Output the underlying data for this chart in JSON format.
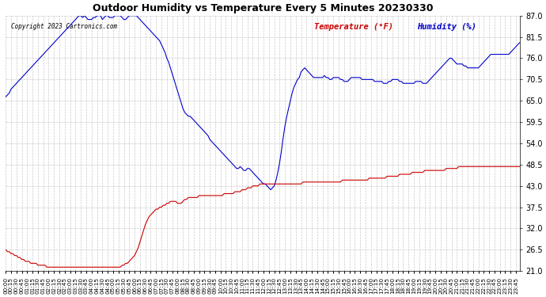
{
  "title": "Outdoor Humidity vs Temperature Every 5 Minutes 20230330",
  "copyright_text": "Copyright 2023 Cartronics.com",
  "legend_temp": "Temperature (°F)",
  "legend_hum": "Humidity (%)",
  "background_color": "#ffffff",
  "grid_color": "#bbbbbb",
  "humidity_color": "#0000cc",
  "temperature_color": "#cc0000",
  "ylim": [
    21.0,
    87.0
  ],
  "yticks": [
    21.0,
    26.5,
    32.0,
    37.5,
    43.0,
    48.5,
    54.0,
    59.5,
    65.0,
    70.5,
    76.0,
    81.5,
    87.0
  ],
  "humidity_data": [
    66.0,
    66.5,
    67.0,
    68.0,
    68.5,
    69.0,
    69.5,
    70.0,
    70.5,
    71.0,
    71.5,
    72.0,
    72.5,
    73.0,
    73.5,
    74.0,
    74.5,
    75.0,
    75.5,
    76.0,
    76.5,
    77.0,
    77.5,
    78.0,
    78.5,
    79.0,
    79.5,
    80.0,
    80.5,
    81.0,
    81.5,
    82.0,
    82.5,
    83.0,
    83.5,
    84.0,
    84.5,
    85.0,
    85.5,
    86.0,
    86.5,
    87.0,
    87.0,
    86.5,
    87.0,
    86.5,
    86.0,
    86.0,
    86.0,
    86.5,
    86.5,
    87.0,
    87.0,
    87.0,
    86.0,
    86.5,
    87.0,
    87.0,
    86.5,
    86.5,
    86.5,
    87.0,
    87.0,
    87.0,
    87.0,
    86.5,
    86.0,
    86.0,
    86.5,
    87.0,
    87.0,
    87.0,
    87.0,
    87.0,
    86.5,
    86.0,
    85.5,
    85.0,
    84.5,
    84.0,
    83.5,
    83.0,
    82.5,
    82.0,
    81.5,
    81.0,
    80.5,
    79.5,
    78.5,
    77.5,
    76.0,
    75.0,
    73.5,
    72.0,
    70.5,
    69.0,
    67.5,
    66.0,
    64.5,
    63.0,
    62.0,
    61.5,
    61.0,
    61.0,
    60.5,
    60.0,
    59.5,
    59.0,
    58.5,
    58.0,
    57.5,
    57.0,
    56.5,
    56.0,
    55.0,
    54.5,
    54.0,
    53.5,
    53.0,
    52.5,
    52.0,
    51.5,
    51.0,
    50.5,
    50.0,
    49.5,
    49.0,
    48.5,
    48.0,
    47.5,
    47.5,
    48.0,
    47.5,
    47.0,
    47.0,
    47.5,
    47.5,
    47.0,
    46.5,
    46.0,
    45.5,
    45.0,
    44.5,
    44.0,
    43.5,
    43.5,
    43.0,
    42.5,
    42.0,
    42.5,
    43.0,
    44.5,
    46.5,
    49.0,
    52.0,
    55.5,
    58.5,
    61.0,
    63.0,
    65.0,
    67.0,
    68.5,
    69.5,
    70.5,
    71.0,
    72.5,
    73.0,
    73.5,
    73.0,
    72.5,
    72.0,
    71.5,
    71.0,
    71.0,
    71.0,
    71.0,
    71.0,
    71.0,
    71.5,
    71.0,
    71.0,
    70.5,
    70.5,
    71.0,
    71.0,
    71.0,
    71.0,
    70.5,
    70.5,
    70.0,
    70.0,
    70.0,
    70.5,
    71.0,
    71.0,
    71.0,
    71.0,
    71.0,
    71.0,
    70.5,
    70.5,
    70.5,
    70.5,
    70.5,
    70.5,
    70.5,
    70.0,
    70.0,
    70.0,
    70.0,
    70.0,
    69.5,
    69.5,
    69.5,
    70.0,
    70.0,
    70.5,
    70.5,
    70.5,
    70.5,
    70.0,
    70.0,
    69.5,
    69.5,
    69.5,
    69.5,
    69.5,
    69.5,
    69.5,
    70.0,
    70.0,
    70.0,
    70.0,
    69.5,
    69.5,
    69.5,
    70.0,
    70.5,
    71.0,
    71.5,
    72.0,
    72.5,
    73.0,
    73.5,
    74.0,
    74.5,
    75.0,
    75.5,
    76.0,
    76.0,
    75.5,
    75.0,
    74.5,
    74.5,
    74.5,
    74.5,
    74.0,
    74.0,
    73.5,
    73.5,
    73.5,
    73.5,
    73.5,
    73.5,
    73.5,
    74.0,
    74.5,
    75.0,
    75.5,
    76.0,
    76.5,
    77.0,
    77.0,
    77.0,
    77.0,
    77.0,
    77.0,
    77.0,
    77.0,
    77.0,
    77.0,
    77.0,
    77.5,
    78.0,
    78.5,
    79.0,
    79.5,
    80.0,
    80.5,
    81.0
  ],
  "temperature_data": [
    26.5,
    26.0,
    26.0,
    25.5,
    25.5,
    25.0,
    25.0,
    24.5,
    24.5,
    24.0,
    24.0,
    23.5,
    23.5,
    23.5,
    23.0,
    23.0,
    23.0,
    23.0,
    22.5,
    22.5,
    22.5,
    22.5,
    22.5,
    22.0,
    22.0,
    22.0,
    22.0,
    22.0,
    22.0,
    22.0,
    22.0,
    22.0,
    22.0,
    22.0,
    22.0,
    22.0,
    22.0,
    22.0,
    22.0,
    22.0,
    22.0,
    22.0,
    22.0,
    22.0,
    22.0,
    22.0,
    22.0,
    22.0,
    22.0,
    22.0,
    22.0,
    22.0,
    22.0,
    22.0,
    22.0,
    22.0,
    22.0,
    22.0,
    22.0,
    22.0,
    22.0,
    22.0,
    22.0,
    22.0,
    22.0,
    22.5,
    22.5,
    23.0,
    23.0,
    23.5,
    24.0,
    24.5,
    25.0,
    26.0,
    27.0,
    28.5,
    30.0,
    31.5,
    33.0,
    34.0,
    35.0,
    35.5,
    36.0,
    36.5,
    37.0,
    37.0,
    37.5,
    37.5,
    38.0,
    38.0,
    38.5,
    38.5,
    39.0,
    39.0,
    39.0,
    39.0,
    38.5,
    38.5,
    38.5,
    39.0,
    39.5,
    39.5,
    40.0,
    40.0,
    40.0,
    40.0,
    40.0,
    40.0,
    40.5,
    40.5,
    40.5,
    40.5,
    40.5,
    40.5,
    40.5,
    40.5,
    40.5,
    40.5,
    40.5,
    40.5,
    40.5,
    40.5,
    41.0,
    41.0,
    41.0,
    41.0,
    41.0,
    41.0,
    41.5,
    41.5,
    41.5,
    41.5,
    42.0,
    42.0,
    42.0,
    42.5,
    42.5,
    42.5,
    43.0,
    43.0,
    43.0,
    43.0,
    43.5,
    43.5,
    43.5,
    43.5,
    43.5,
    43.5,
    43.5,
    43.5,
    43.5,
    43.5,
    43.5,
    43.5,
    43.5,
    43.5,
    43.5,
    43.5,
    43.5,
    43.5,
    43.5,
    43.5,
    43.5,
    43.5,
    43.5,
    43.5,
    44.0,
    44.0,
    44.0,
    44.0,
    44.0,
    44.0,
    44.0,
    44.0,
    44.0,
    44.0,
    44.0,
    44.0,
    44.0,
    44.0,
    44.0,
    44.0,
    44.0,
    44.0,
    44.0,
    44.0,
    44.0,
    44.0,
    44.5,
    44.5,
    44.5,
    44.5,
    44.5,
    44.5,
    44.5,
    44.5,
    44.5,
    44.5,
    44.5,
    44.5,
    44.5,
    44.5,
    44.5,
    45.0,
    45.0,
    45.0,
    45.0,
    45.0,
    45.0,
    45.0,
    45.0,
    45.0,
    45.0,
    45.5,
    45.5,
    45.5,
    45.5,
    45.5,
    45.5,
    45.5,
    46.0,
    46.0,
    46.0,
    46.0,
    46.0,
    46.0,
    46.0,
    46.5,
    46.5,
    46.5,
    46.5,
    46.5,
    46.5,
    46.5,
    47.0,
    47.0,
    47.0,
    47.0,
    47.0,
    47.0,
    47.0,
    47.0,
    47.0,
    47.0,
    47.0,
    47.0,
    47.5,
    47.5,
    47.5,
    47.5,
    47.5,
    47.5,
    47.5,
    48.0,
    48.0,
    48.0,
    48.0,
    48.0,
    48.0,
    48.0,
    48.0,
    48.0,
    48.0,
    48.0,
    48.0,
    48.0,
    48.0,
    48.0,
    48.0,
    48.0,
    48.0,
    48.0,
    48.0,
    48.0,
    48.0,
    48.0,
    48.0,
    48.0,
    48.0,
    48.0,
    48.0,
    48.0,
    48.0,
    48.0,
    48.0,
    48.0,
    48.0,
    48.0
  ]
}
